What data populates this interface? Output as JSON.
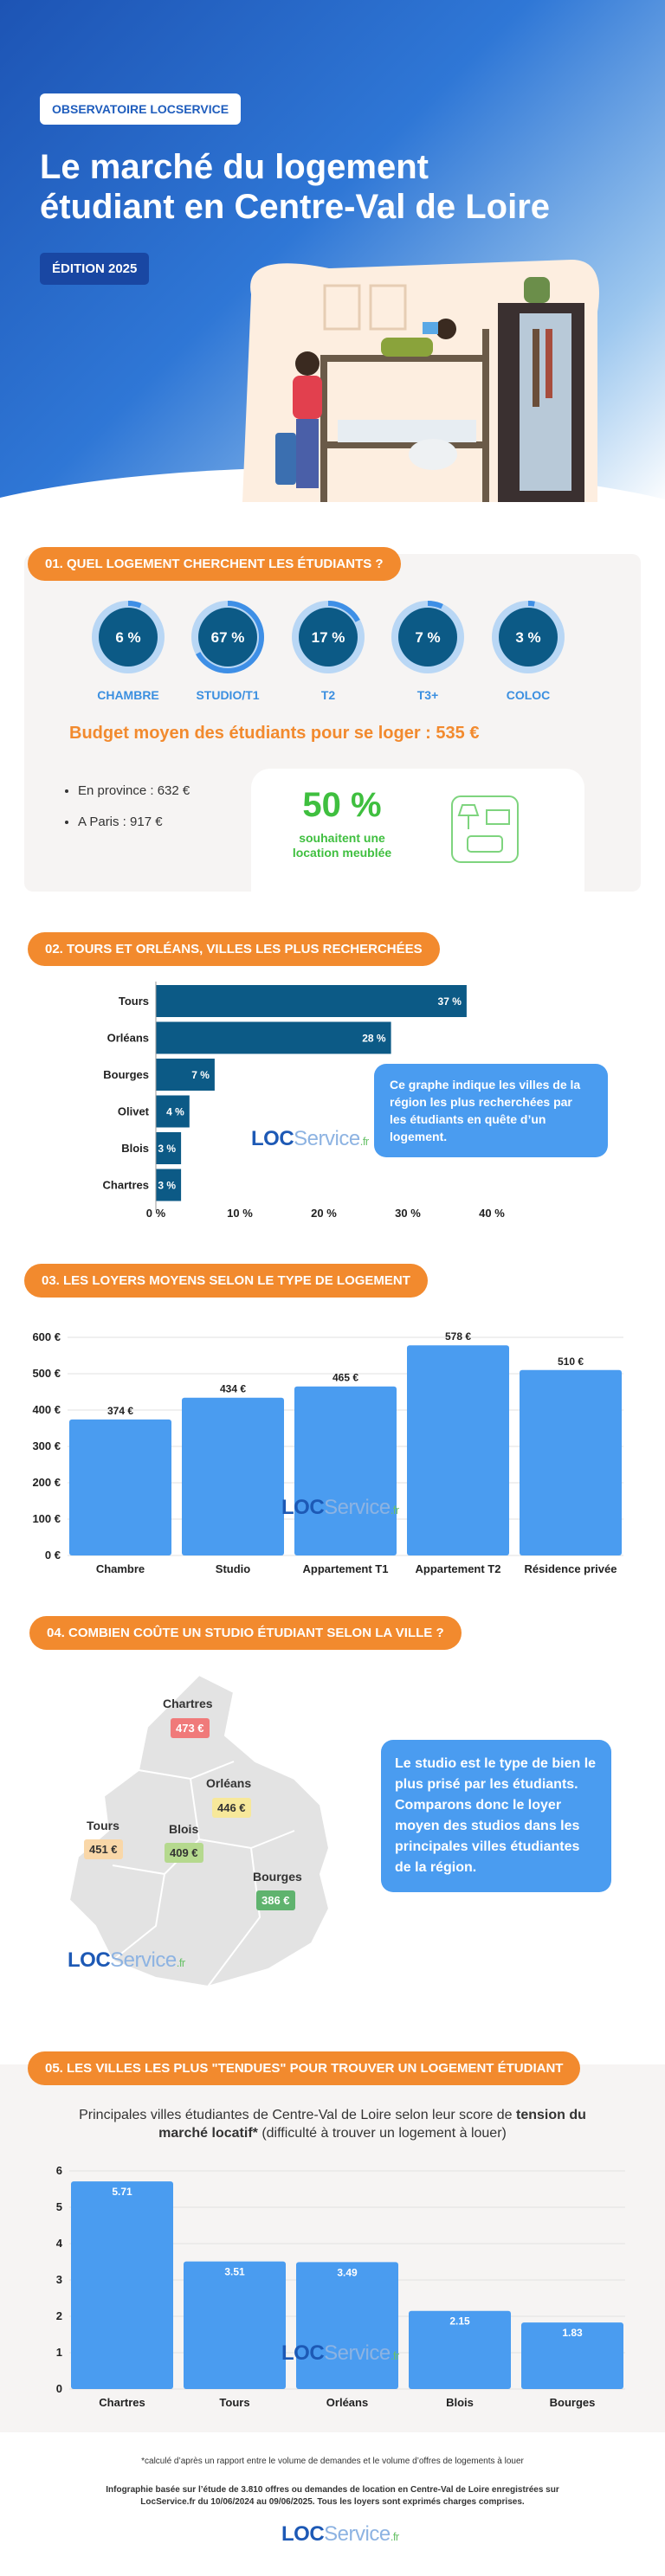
{
  "header": {
    "badge": "OBSERVATOIRE LOCSERVICE",
    "title_line1": "Le marché du logement",
    "title_line2": "étudiant en Centre-Val de Loire",
    "edition": "ÉDITION 2025"
  },
  "section1": {
    "title": "01. QUEL LOGEMENT CHERCHENT LES ÉTUDIANTS ?",
    "budget_text": "Budget moyen des étudiants pour se loger : 535 €",
    "list": [
      "En province : 632 €",
      "A Paris : 917 €"
    ],
    "furnished_pct": "50 %",
    "furnished_text": "souhaitent une location meublée"
  },
  "section2": {
    "title": "02. TOURS ET ORLÉANS, VILLES LES PLUS RECHERCHÉES",
    "callout": "Ce graphe indique les villes de la région les plus recherchées par les étudiants en quête d’un logement."
  },
  "section3": {
    "title": "03. LES LOYERS MOYENS SELON LE TYPE DE LOGEMENT"
  },
  "section4": {
    "title": "04. COMBIEN COÛTE UN STUDIO ÉTUDIANT SELON LA VILLE ?",
    "callout": "Le studio est le type de bien le plus prisé par les étudiants. Comparons donc le loyer moyen des studios dans les principales villes étudiantes de la région."
  },
  "section5": {
    "title": "05. LES VILLES LES PLUS \"TENDUES\" POUR TROUVER UN LOGEMENT ÉTUDIANT",
    "subtitle_a": "Principales villes étudiantes de Centre-Val de Loire selon leur score de ",
    "subtitle_b": "tension du marché locatif*",
    "subtitle_c": " (difficulté à trouver un logement à louer)"
  },
  "footer": {
    "note": "*calculé d’après un rapport entre le volume de demandes et le volume d’offres de logements à louer",
    "source_1": "Infographie basée sur l’étude de 3.810 offres ou demandes de location en Centre-Val de Loire enregistrées sur",
    "source_2": "LocService.fr du 10/06/2024 au 09/06/2025. Tous les loyers sont exprimés charges comprises."
  },
  "logo": {
    "loc": "LOC",
    "service": "Service",
    "fr": ".fr"
  },
  "colors": {
    "orange": "#f28a2e",
    "blue": "#4a9cf0",
    "navy": "#0c5a86",
    "green": "#3fbf3f"
  },
  "chart_data": [
    {
      "type": "pie",
      "categories": [
        "CHAMBRE",
        "STUDIO/T1",
        "T2",
        "T3+",
        "COLOC"
      ],
      "values": [
        6,
        67,
        17,
        7,
        3
      ],
      "labels": [
        "6 %",
        "67 %",
        "17 %",
        "7 %",
        "3 %"
      ]
    },
    {
      "type": "bar",
      "orientation": "horizontal",
      "categories": [
        "Tours",
        "Orléans",
        "Bourges",
        "Olivet",
        "Blois",
        "Chartres"
      ],
      "values": [
        37,
        28,
        7,
        4,
        3,
        3
      ],
      "labels": [
        "37 %",
        "28 %",
        "7 %",
        "4 %",
        "3 %",
        "3 %"
      ],
      "xlim": [
        0,
        40
      ],
      "xticks": [
        "0 %",
        "10 %",
        "20 %",
        "30 %",
        "40 %"
      ]
    },
    {
      "type": "bar",
      "categories": [
        "Chambre",
        "Studio",
        "Appartement T1",
        "Appartement T2",
        "Résidence privée"
      ],
      "values": [
        374,
        434,
        465,
        578,
        510
      ],
      "labels": [
        "374 €",
        "434 €",
        "465 €",
        "578 €",
        "510 €"
      ],
      "ylim": [
        0,
        600
      ],
      "yticks": [
        "0 €",
        "100 €",
        "200 €",
        "300 €",
        "400 €",
        "500 €",
        "600 €"
      ]
    },
    {
      "type": "map",
      "cities": [
        {
          "name": "Chartres",
          "value": "473 €",
          "color": "#f07a7a"
        },
        {
          "name": "Orléans",
          "value": "446 €",
          "color": "#f7e89a"
        },
        {
          "name": "Tours",
          "value": "451 €",
          "color": "#f9d7a8"
        },
        {
          "name": "Blois",
          "value": "409 €",
          "color": "#b5d98e"
        },
        {
          "name": "Bourges",
          "value": "386 €",
          "color": "#5fb36e"
        }
      ]
    },
    {
      "type": "bar",
      "categories": [
        "Chartres",
        "Tours",
        "Orléans",
        "Blois",
        "Bourges"
      ],
      "values": [
        5.71,
        3.51,
        3.49,
        2.15,
        1.83
      ],
      "labels": [
        "5.71",
        "3.51",
        "3.49",
        "2.15",
        "1.83"
      ],
      "ylim": [
        0,
        6
      ],
      "yticks": [
        "0",
        "1",
        "2",
        "3",
        "4",
        "5",
        "6"
      ]
    }
  ]
}
